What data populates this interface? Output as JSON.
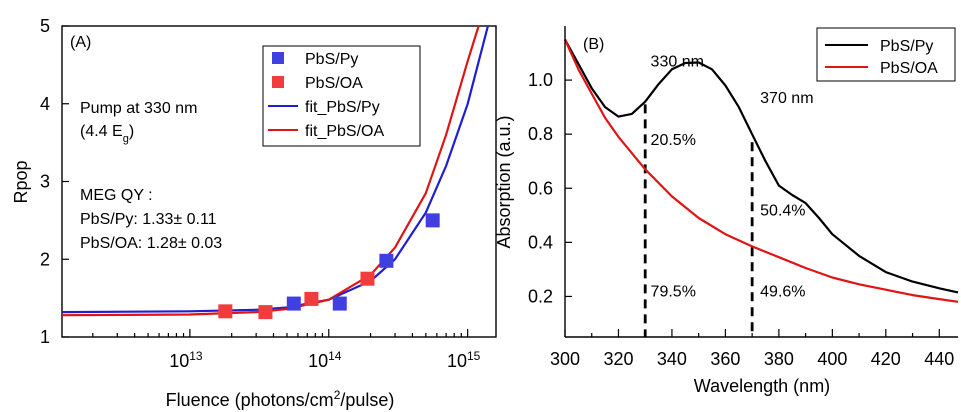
{
  "chart_data": [
    {
      "type": "scatter",
      "panel_label": "(A)",
      "xlabel": "Fluence (photons/cm",
      "xlabel_sup": "2",
      "xlabel_tail": "/pulse)",
      "ylabel": "Rpop",
      "xscale": "log",
      "xlim": [
        1200000000000.0,
        1600000000000000.0
      ],
      "ylim": [
        1,
        5
      ],
      "x_ticks": [
        {
          "value": 10000000000000.0,
          "base": "10",
          "exp": "13"
        },
        {
          "value": 100000000000000.0,
          "base": "10",
          "exp": "14"
        },
        {
          "value": 1000000000000000.0,
          "base": "10",
          "exp": "15"
        }
      ],
      "y_ticks": [
        1,
        2,
        3,
        4,
        5
      ],
      "y_tick_labels": [
        "1",
        "2",
        "3",
        "4",
        "5"
      ],
      "series": [
        {
          "name": "PbS/Py",
          "kind": "marker",
          "color": "#4040e0",
          "points": [
            [
              56000000000000.0,
              1.43
            ],
            [
              120000000000000.0,
              1.43
            ],
            [
              260000000000000.0,
              1.98
            ],
            [
              560000000000000.0,
              2.5
            ]
          ]
        },
        {
          "name": "PbS/OA",
          "kind": "marker",
          "color": "#f03c3c",
          "points": [
            [
              18000000000000.0,
              1.33
            ],
            [
              35000000000000.0,
              1.32
            ],
            [
              75000000000000.0,
              1.49
            ],
            [
              190000000000000.0,
              1.75
            ]
          ]
        },
        {
          "name": "fit_PbS/Py",
          "kind": "line",
          "color": "#1f1fd0",
          "points": [
            [
              1200000000000.0,
              1.32
            ],
            [
              10000000000000.0,
              1.33
            ],
            [
              30000000000000.0,
              1.35
            ],
            [
              50000000000000.0,
              1.38
            ],
            [
              100000000000000.0,
              1.48
            ],
            [
              200000000000000.0,
              1.72
            ],
            [
              300000000000000.0,
              2.0
            ],
            [
              500000000000000.0,
              2.6
            ],
            [
              700000000000000.0,
              3.2
            ],
            [
              1000000000000000.0,
              4.0
            ],
            [
              1400000000000000.0,
              5.0
            ]
          ]
        },
        {
          "name": "fit_PbS/OA",
          "kind": "line",
          "color": "#e01414",
          "points": [
            [
              1200000000000.0,
              1.28
            ],
            [
              10000000000000.0,
              1.29
            ],
            [
              30000000000000.0,
              1.32
            ],
            [
              50000000000000.0,
              1.36
            ],
            [
              100000000000000.0,
              1.48
            ],
            [
              200000000000000.0,
              1.8
            ],
            [
              300000000000000.0,
              2.15
            ],
            [
              500000000000000.0,
              2.85
            ],
            [
              700000000000000.0,
              3.6
            ],
            [
              1000000000000000.0,
              4.55
            ],
            [
              1200000000000000.0,
              5.0
            ]
          ]
        }
      ],
      "annotations": {
        "pump_line1": "Pump at 330 nm",
        "pump_line2_pre": "(4.4 E",
        "pump_line2_sub": "g",
        "pump_line2_post": ")",
        "qy_title": "MEG QY :",
        "qy_py": "PbS/Py: 1.33± 0.11",
        "qy_oa": "PbS/OA: 1.28± 0.03"
      },
      "legend_position": "top-right"
    },
    {
      "type": "line",
      "panel_label": "(B)",
      "xlabel": "Wavelength (nm)",
      "ylabel": "Absorption (a.u.)",
      "xlim": [
        300,
        447
      ],
      "ylim": [
        0.05,
        1.2
      ],
      "x_ticks": [
        300,
        320,
        340,
        360,
        380,
        400,
        420,
        440
      ],
      "y_ticks": [
        0.2,
        0.4,
        0.6,
        0.8,
        1.0
      ],
      "y_tick_labels": [
        "0.2",
        "0.4",
        "0.6",
        "0.8",
        "1.0"
      ],
      "series": [
        {
          "name": "PbS/Py",
          "color": "#000000",
          "points": [
            [
              300,
              1.15
            ],
            [
              305,
              1.06
            ],
            [
              310,
              0.97
            ],
            [
              315,
              0.9
            ],
            [
              320,
              0.865
            ],
            [
              325,
              0.875
            ],
            [
              330,
              0.92
            ],
            [
              335,
              0.985
            ],
            [
              340,
              1.04
            ],
            [
              345,
              1.063
            ],
            [
              350,
              1.065
            ],
            [
              355,
              1.04
            ],
            [
              360,
              0.98
            ],
            [
              365,
              0.9
            ],
            [
              370,
              0.8
            ],
            [
              375,
              0.7
            ],
            [
              380,
              0.61
            ],
            [
              385,
              0.575
            ],
            [
              390,
              0.545
            ],
            [
              395,
              0.49
            ],
            [
              400,
              0.43
            ],
            [
              410,
              0.35
            ],
            [
              420,
              0.29
            ],
            [
              430,
              0.255
            ],
            [
              440,
              0.23
            ],
            [
              447,
              0.215
            ]
          ]
        },
        {
          "name": "PbS/OA",
          "color": "#e01414",
          "points": [
            [
              300,
              1.15
            ],
            [
              305,
              1.04
            ],
            [
              310,
              0.95
            ],
            [
              315,
              0.86
            ],
            [
              320,
              0.79
            ],
            [
              325,
              0.73
            ],
            [
              330,
              0.67
            ],
            [
              340,
              0.57
            ],
            [
              350,
              0.49
            ],
            [
              360,
              0.43
            ],
            [
              370,
              0.385
            ],
            [
              380,
              0.345
            ],
            [
              390,
              0.305
            ],
            [
              400,
              0.27
            ],
            [
              410,
              0.245
            ],
            [
              420,
              0.225
            ],
            [
              430,
              0.205
            ],
            [
              440,
              0.19
            ],
            [
              447,
              0.18
            ]
          ]
        }
      ],
      "dashed_markers": [
        {
          "x": 330,
          "y_top": 0.91
        },
        {
          "x": 370,
          "y_top": 0.77
        }
      ],
      "annotations": [
        {
          "text": "330 nm",
          "x": 332,
          "y": 1.05,
          "color": "#000000"
        },
        {
          "text": "370 nm",
          "x": 373,
          "y": 0.915,
          "color": "#000000"
        },
        {
          "text": "20.5%",
          "x": 332,
          "y": 0.76,
          "color": "#000000"
        },
        {
          "text": "50.4%",
          "x": 373,
          "y": 0.5,
          "color": "#000000"
        },
        {
          "text": "79.5%",
          "x": 332,
          "y": 0.2,
          "color": "#e01414"
        },
        {
          "text": "49.6%",
          "x": 373,
          "y": 0.2,
          "color": "#e01414"
        }
      ],
      "legend_position": "top-right"
    }
  ]
}
